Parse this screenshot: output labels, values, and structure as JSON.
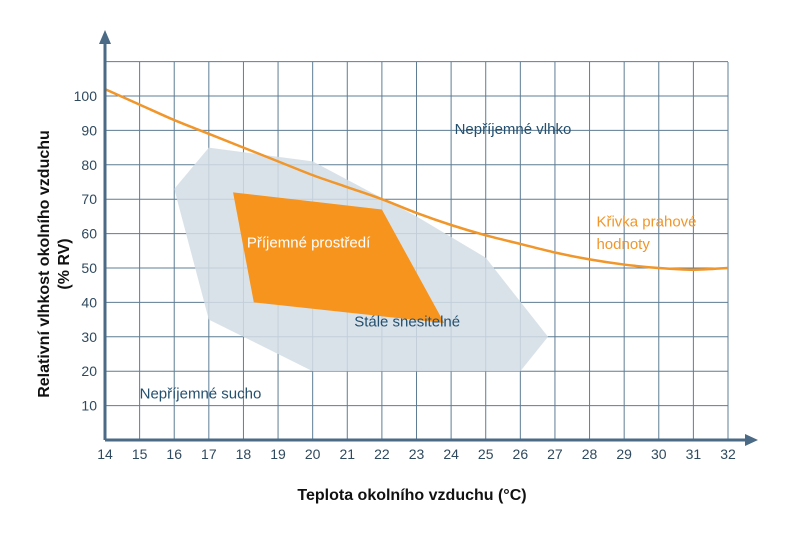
{
  "chart_data": {
    "type": "area",
    "title": "",
    "xlabel": "Teplota okolního vzduchu (°C)",
    "ylabel_line1": "Relativní vlhkost okolního vzduchu",
    "ylabel_line2": "(% RV)",
    "xlim": [
      14,
      32
    ],
    "ylim": [
      0,
      110
    ],
    "x_ticks": [
      14,
      15,
      16,
      17,
      18,
      19,
      20,
      21,
      22,
      23,
      24,
      25,
      26,
      27,
      28,
      29,
      30,
      31,
      32
    ],
    "y_ticks": [
      10,
      20,
      30,
      40,
      50,
      60,
      70,
      80,
      90,
      100
    ],
    "grid": true,
    "colors": {
      "grid": "#5e7d94",
      "axis": "#4a6a85",
      "tolerable_fill": "#d3dde5",
      "comfortable_fill": "#f7941d",
      "threshold_curve": "#f0962a"
    },
    "series": [
      {
        "name": "Křivka prahové hodnoty",
        "kind": "line",
        "points": [
          [
            14,
            102
          ],
          [
            15,
            97.5
          ],
          [
            16,
            93
          ],
          [
            17,
            89
          ],
          [
            18,
            85
          ],
          [
            19,
            81
          ],
          [
            20,
            77
          ],
          [
            21,
            73.5
          ],
          [
            22,
            70
          ],
          [
            23,
            66
          ],
          [
            24,
            62.5
          ],
          [
            25,
            59.5
          ],
          [
            26,
            57
          ],
          [
            27,
            54.5
          ],
          [
            28,
            52.5
          ],
          [
            29,
            51
          ],
          [
            30,
            50
          ],
          [
            31,
            49.5
          ],
          [
            32,
            50
          ]
        ]
      },
      {
        "name": "Stále snesitelné",
        "kind": "area",
        "points": [
          [
            16,
            73
          ],
          [
            17,
            85
          ],
          [
            20,
            81
          ],
          [
            23,
            65
          ],
          [
            25,
            53
          ],
          [
            26.8,
            30
          ],
          [
            26,
            20
          ],
          [
            20,
            20
          ],
          [
            17,
            35
          ]
        ]
      },
      {
        "name": "Příjemné prostředí",
        "kind": "area",
        "points": [
          [
            17.7,
            72
          ],
          [
            22,
            67
          ],
          [
            23.8,
            34
          ],
          [
            18.3,
            40
          ]
        ]
      }
    ],
    "annotations": [
      {
        "id": "unpleasant-humid",
        "text": "Nepříjemné vlhko",
        "x": 24.1,
        "y": 89
      },
      {
        "id": "tolerable",
        "text": "Stále snesitelné",
        "x": 21.2,
        "y": 33
      },
      {
        "id": "comfortable",
        "text": "Příjemné prostředí",
        "x": 18.1,
        "y": 56
      },
      {
        "id": "unpleasant-dry",
        "text": "Nepříjemné sucho",
        "x": 15,
        "y": 12
      },
      {
        "id": "threshold-line1",
        "text": "Křivka prahové",
        "x": 28.2,
        "y": 62
      },
      {
        "id": "threshold-line2",
        "text": "hodnoty",
        "x": 28.2,
        "y": 55.5
      }
    ]
  }
}
